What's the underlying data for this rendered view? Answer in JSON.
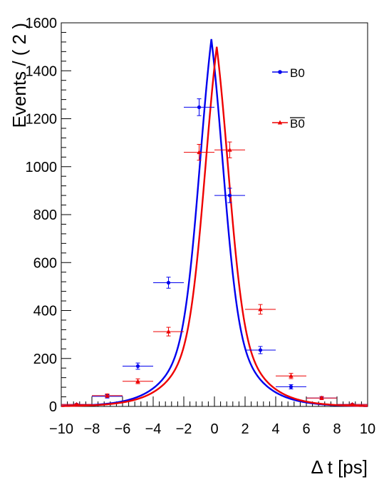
{
  "chart_data": {
    "type": "scatter",
    "xlabel": "Δ t [ps]",
    "ylabel": "Events / ( 2 )",
    "xlim": [
      -10,
      10
    ],
    "ylim": [
      0,
      1600
    ],
    "x_ticks": [
      -10,
      -8,
      -6,
      -4,
      -2,
      0,
      2,
      4,
      6,
      8,
      10
    ],
    "y_ticks": [
      0,
      200,
      400,
      600,
      800,
      1000,
      1200,
      1400,
      1600
    ],
    "grid": false,
    "legend_position": "top-right",
    "series": [
      {
        "name": "B0",
        "color": "#0000ee",
        "marker": "circle",
        "bin_half_width": 1,
        "points": [
          {
            "x": -9,
            "y": 8,
            "err": 3
          },
          {
            "x": -7,
            "y": 42,
            "err": 7
          },
          {
            "x": -5,
            "y": 168,
            "err": 13
          },
          {
            "x": -3,
            "y": 516,
            "err": 23
          },
          {
            "x": -1,
            "y": 1248,
            "err": 35
          },
          {
            "x": 1,
            "y": 880,
            "err": 30
          },
          {
            "x": 3,
            "y": 235,
            "err": 15
          },
          {
            "x": 5,
            "y": 82,
            "err": 9
          },
          {
            "x": 7,
            "y": 35,
            "err": 6
          },
          {
            "x": 9,
            "y": 8,
            "err": 3
          }
        ],
        "curve": {
          "peak_x": -0.2,
          "peak_y": 1532,
          "tau_left": 1.5,
          "tau_right": 1.5,
          "width": 1.6
        }
      },
      {
        "name": "B0bar",
        "color": "#ee0000",
        "marker": "triangle",
        "bin_half_width": 1,
        "points": [
          {
            "x": -9,
            "y": 8,
            "err": 3
          },
          {
            "x": -7,
            "y": 45,
            "err": 7
          },
          {
            "x": -5,
            "y": 105,
            "err": 10
          },
          {
            "x": -3,
            "y": 312,
            "err": 18
          },
          {
            "x": -1,
            "y": 1060,
            "err": 33
          },
          {
            "x": 1,
            "y": 1070,
            "err": 33
          },
          {
            "x": 3,
            "y": 405,
            "err": 20
          },
          {
            "x": 5,
            "y": 127,
            "err": 11
          },
          {
            "x": 7,
            "y": 35,
            "err": 6
          },
          {
            "x": 9,
            "y": 8,
            "err": 3
          }
        ],
        "curve": {
          "peak_x": 0.15,
          "peak_y": 1500,
          "tau_left": 1.5,
          "tau_right": 1.5,
          "width": 1.6
        }
      }
    ],
    "legend": [
      {
        "label": "B0",
        "overline": false
      },
      {
        "label": "B0",
        "overline": true
      }
    ]
  }
}
